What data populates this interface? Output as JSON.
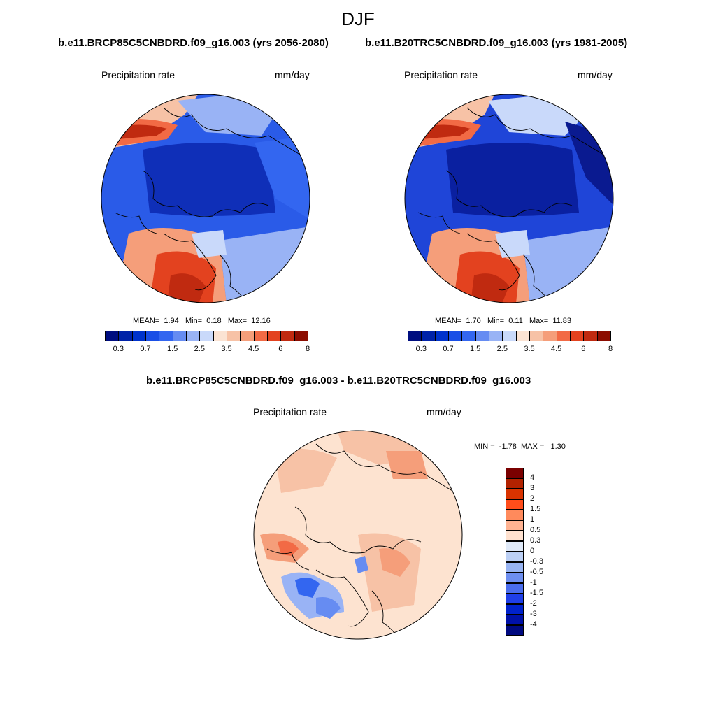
{
  "figure": {
    "season": "DJF"
  },
  "panels": [
    {
      "id": "future",
      "case_title": "b.e11.BRCP85C5CNBDRD.f09_g16.003 (yrs 2056-2080)",
      "variable": "Precipitation rate",
      "units": "mm/day",
      "stats": {
        "mean_label": "MEAN=",
        "mean": "1.94",
        "min_label": "Min=",
        "min": "0.18",
        "max_label": "Max=",
        "max": "12.16"
      }
    },
    {
      "id": "historical",
      "case_title": "b.e11.B20TRC5CNBDRD.f09_g16.003 (yrs 1981-2005)",
      "variable": "Precipitation rate",
      "units": "mm/day",
      "stats": {
        "mean_label": "MEAN=",
        "mean": "1.70",
        "min_label": "Min=",
        "min": "0.11",
        "max_label": "Max=",
        "max": "11.83"
      }
    },
    {
      "id": "difference",
      "case_title": "b.e11.BRCP85C5CNBDRD.f09_g16.003 - b.e11.B20TRC5CNBDRD.f09_g16.003",
      "variable": "Precipitation rate",
      "units": "mm/day",
      "stats": {
        "min_label": "MIN =",
        "min": "-1.78",
        "max_label": "MAX =",
        "max": "1.30"
      }
    }
  ],
  "colorbars": {
    "absolute": {
      "colors": [
        "#000e80",
        "#0022a8",
        "#0033cc",
        "#1a4fe6",
        "#3366f0",
        "#668cf2",
        "#99b3f5",
        "#c9d9fa",
        "#fbe3d3",
        "#f7c2a6",
        "#f59e7a",
        "#f26a45",
        "#e3421f",
        "#c02a10",
        "#8c0c00"
      ],
      "tick_labels": [
        "0.3",
        "0.7",
        "1.5",
        "2.5",
        "3.5",
        "4.5",
        "6",
        "8"
      ]
    },
    "difference": {
      "colors_top_to_bottom": [
        "#7a0000",
        "#b22200",
        "#d93300",
        "#ff4d1a",
        "#ff8a5c",
        "#ffb392",
        "#ffe1cf",
        "#dfe9f8",
        "#bcd0f5",
        "#98b4f2",
        "#6e8ff0",
        "#4a6ded",
        "#1f3fe8",
        "#0022cc",
        "#0011a8",
        "#000a80"
      ],
      "tick_labels": [
        "4",
        "3",
        "2",
        "1.5",
        "1",
        "0.5",
        "0.3",
        "0",
        "-0.3",
        "-0.5",
        "-1",
        "-1.5",
        "-2",
        "-3",
        "-4"
      ]
    }
  },
  "chart_data": [
    {
      "type": "heatmap",
      "projection": "north polar stereographic",
      "title": "b.e11.BRCP85C5CNBDRD.f09_g16.003 (yrs 2056-2080)",
      "variable": "Precipitation rate",
      "units": "mm/day",
      "contour_levels": [
        0.3,
        0.5,
        0.7,
        1,
        1.5,
        2,
        2.5,
        3,
        3.5,
        4,
        4.5,
        5,
        6,
        7,
        8
      ],
      "mean": 1.94,
      "min": 0.18,
      "max": 12.16
    },
    {
      "type": "heatmap",
      "projection": "north polar stereographic",
      "title": "b.e11.B20TRC5CNBDRD.f09_g16.003 (yrs 1981-2005)",
      "variable": "Precipitation rate",
      "units": "mm/day",
      "contour_levels": [
        0.3,
        0.5,
        0.7,
        1,
        1.5,
        2,
        2.5,
        3,
        3.5,
        4,
        4.5,
        5,
        6,
        7,
        8
      ],
      "mean": 1.7,
      "min": 0.11,
      "max": 11.83
    },
    {
      "type": "heatmap",
      "projection": "north polar stereographic",
      "title": "b.e11.BRCP85C5CNBDRD.f09_g16.003 - b.e11.B20TRC5CNBDRD.f09_g16.003",
      "variable": "Precipitation rate",
      "units": "mm/day",
      "contour_levels": [
        -4,
        -3,
        -2,
        -1.5,
        -1,
        -0.5,
        -0.3,
        0,
        0.3,
        0.5,
        1,
        1.5,
        2,
        3,
        4
      ],
      "min": -1.78,
      "max": 1.3
    }
  ]
}
